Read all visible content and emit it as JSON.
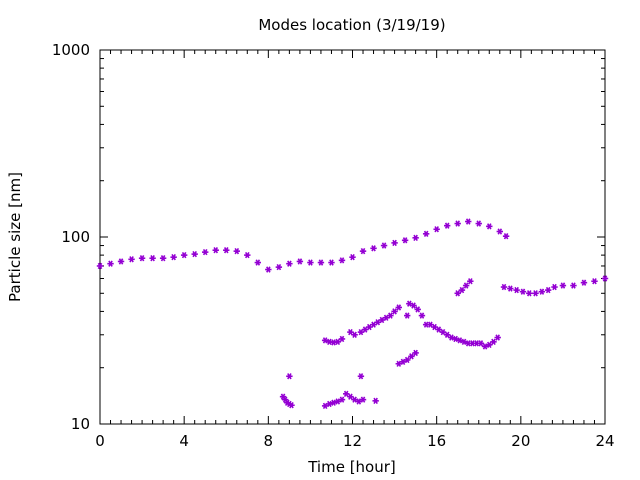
{
  "chart_data": {
    "type": "scatter",
    "title": "Modes location (3/19/19)",
    "xlabel": "Time [hour]",
    "ylabel": "Particle size [nm]",
    "xlim": [
      0,
      24
    ],
    "ylim": [
      10,
      1000
    ],
    "yscale": "log",
    "grid": false,
    "legend": "none",
    "marker_color": "#9400d3",
    "x_ticks": [
      {
        "value": 0,
        "label": "0"
      },
      {
        "value": 4,
        "label": "4"
      },
      {
        "value": 8,
        "label": "8"
      },
      {
        "value": 12,
        "label": "12"
      },
      {
        "value": 16,
        "label": "16"
      },
      {
        "value": 20,
        "label": "20"
      },
      {
        "value": 24,
        "label": "24"
      }
    ],
    "y_ticks": [
      {
        "value": 10,
        "label": "10"
      },
      {
        "value": 100,
        "label": "100"
      },
      {
        "value": 1000,
        "label": "1000"
      }
    ],
    "series": [
      {
        "values": [
          [
            0,
            70
          ],
          [
            0.5,
            72
          ],
          [
            1,
            74
          ],
          [
            1.5,
            76
          ],
          [
            2,
            77
          ],
          [
            2.5,
            77
          ],
          [
            3,
            77
          ],
          [
            3.5,
            78
          ],
          [
            4,
            80
          ],
          [
            4.5,
            81
          ],
          [
            5,
            83
          ],
          [
            5.5,
            85
          ],
          [
            6,
            85
          ],
          [
            6.5,
            84
          ],
          [
            7,
            80
          ],
          [
            7.5,
            73
          ],
          [
            8,
            67
          ],
          [
            8.5,
            69
          ],
          [
            9,
            72
          ],
          [
            9.5,
            74
          ],
          [
            10,
            73
          ],
          [
            10.5,
            73
          ],
          [
            11,
            73
          ],
          [
            11.5,
            75
          ],
          [
            12,
            78
          ],
          [
            12.5,
            84
          ],
          [
            13,
            87
          ],
          [
            13.5,
            90
          ],
          [
            14,
            93
          ],
          [
            14.5,
            96
          ],
          [
            15,
            99
          ],
          [
            15.5,
            104
          ],
          [
            16,
            110
          ],
          [
            16.5,
            115
          ],
          [
            17,
            118
          ],
          [
            17.5,
            121
          ],
          [
            18,
            118
          ],
          [
            18.5,
            114
          ],
          [
            19,
            107
          ],
          [
            19.3,
            101
          ]
        ]
      },
      {
        "values": [
          [
            8.7,
            14
          ],
          [
            8.8,
            13.5
          ],
          [
            8.9,
            13
          ],
          [
            9.0,
            12.8
          ],
          [
            9.1,
            12.6
          ],
          [
            9.0,
            18
          ],
          [
            10.7,
            12.5
          ],
          [
            10.9,
            12.8
          ],
          [
            11.1,
            13
          ],
          [
            11.3,
            13.2
          ],
          [
            11.5,
            13.5
          ],
          [
            11.7,
            14.5
          ],
          [
            11.9,
            14
          ],
          [
            12.1,
            13.5
          ],
          [
            12.3,
            13.2
          ],
          [
            12.5,
            13.5
          ],
          [
            12.4,
            18
          ],
          [
            13.1,
            13.3
          ],
          [
            10.7,
            28
          ],
          [
            10.9,
            27.5
          ],
          [
            11.1,
            27.3
          ],
          [
            11.3,
            27.5
          ],
          [
            11.5,
            28.5
          ],
          [
            11.9,
            31
          ],
          [
            12.1,
            30
          ],
          [
            12.4,
            31
          ],
          [
            12.6,
            32
          ],
          [
            12.8,
            33
          ],
          [
            13,
            34
          ],
          [
            13.2,
            35
          ],
          [
            13.4,
            36
          ],
          [
            13.6,
            37
          ],
          [
            13.8,
            38
          ],
          [
            14,
            40
          ],
          [
            14.2,
            42
          ],
          [
            14.2,
            21
          ],
          [
            14.4,
            21.5
          ],
          [
            14.6,
            22
          ],
          [
            14.8,
            23
          ],
          [
            15,
            24
          ],
          [
            14.6,
            38
          ],
          [
            14.7,
            44
          ],
          [
            14.9,
            43
          ],
          [
            15.1,
            41
          ],
          [
            15.3,
            38
          ],
          [
            15.5,
            34
          ],
          [
            15.7,
            34
          ],
          [
            15.9,
            33
          ],
          [
            16.1,
            32
          ],
          [
            16.3,
            31
          ],
          [
            16.5,
            30
          ],
          [
            16.7,
            29
          ],
          [
            16.9,
            28.5
          ],
          [
            17.1,
            28
          ],
          [
            17.3,
            27.5
          ],
          [
            17.5,
            27
          ],
          [
            17.7,
            27
          ],
          [
            17.9,
            27
          ],
          [
            18.1,
            27
          ],
          [
            18.3,
            26
          ],
          [
            18.5,
            26.5
          ],
          [
            18.7,
            27.5
          ],
          [
            18.9,
            29
          ],
          [
            17.0,
            50
          ],
          [
            17.2,
            52
          ],
          [
            17.4,
            55
          ],
          [
            17.6,
            58
          ],
          [
            19.2,
            54
          ],
          [
            19.5,
            53
          ],
          [
            19.8,
            52
          ],
          [
            20.1,
            51
          ],
          [
            20.4,
            50
          ],
          [
            20.7,
            50
          ],
          [
            21.0,
            51
          ],
          [
            21.3,
            52
          ],
          [
            21.6,
            54
          ],
          [
            22.0,
            55
          ],
          [
            22.5,
            55
          ],
          [
            23.0,
            57
          ],
          [
            23.5,
            58
          ],
          [
            24,
            60
          ]
        ]
      }
    ]
  }
}
